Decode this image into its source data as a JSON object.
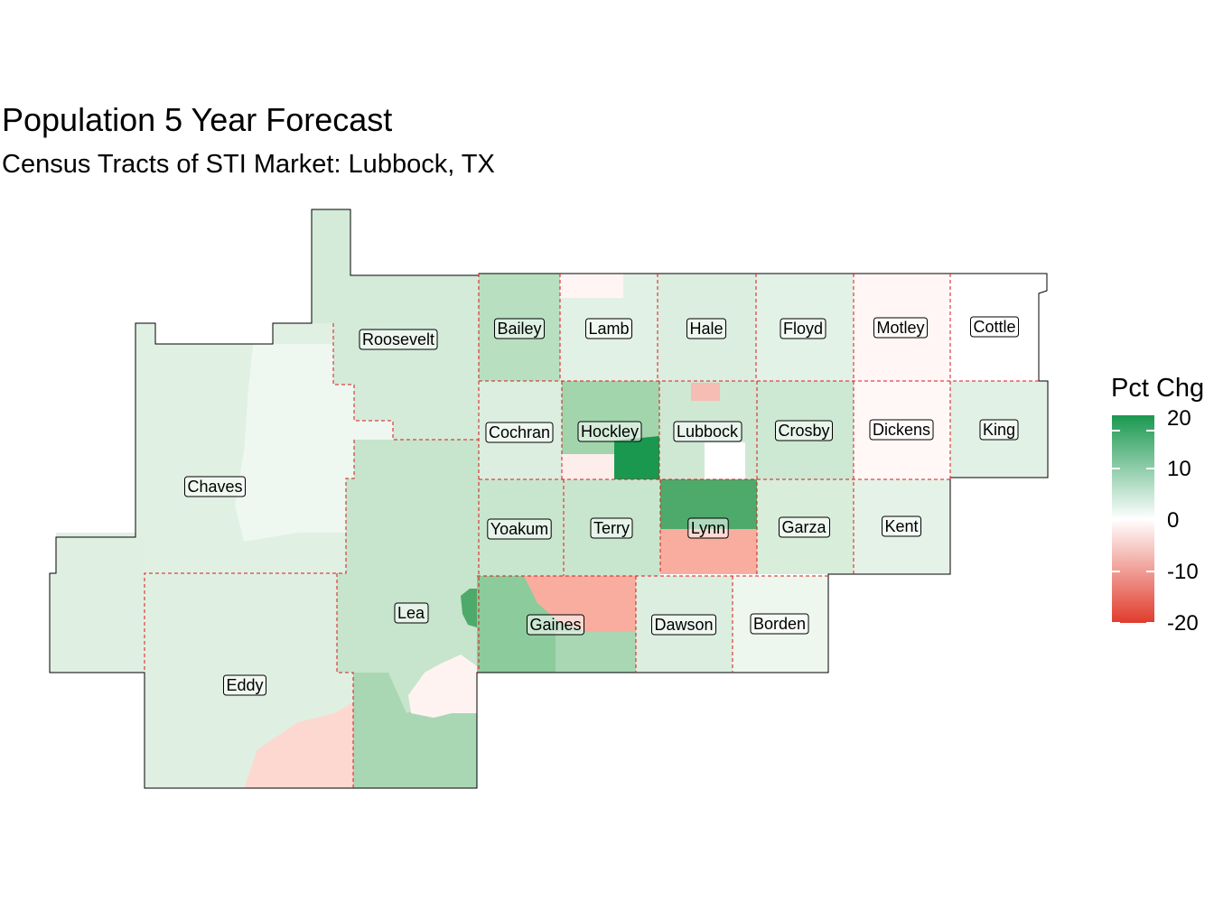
{
  "title": "Population 5 Year Forecast",
  "subtitle": "Census Tracts of STI Market: Lubbock, TX",
  "legend": {
    "title": "Pct Chg",
    "ticks": [
      "20",
      "10",
      "0",
      "-10",
      "-20"
    ],
    "high_color": "#1a9850",
    "mid_color": "#ffffff",
    "low_color": "#e03c2c"
  },
  "counties": [
    {
      "name": "Roosevelt",
      "fill": "#d5ebd9"
    },
    {
      "name": "Bailey",
      "fill": "#b9dfc1"
    },
    {
      "name": "Lamb",
      "fill": "#e2f1e5"
    },
    {
      "name": "Hale",
      "fill": "#dceedf"
    },
    {
      "name": "Floyd",
      "fill": "#e3f2e6"
    },
    {
      "name": "Motley",
      "fill": "#fff6f5"
    },
    {
      "name": "Cottle",
      "fill": "#ffffff"
    },
    {
      "name": "Chaves",
      "fill": "#e0f0e3"
    },
    {
      "name": "Cochran",
      "fill": "#dceedf"
    },
    {
      "name": "Hockley",
      "fill": "#a2d5ac"
    },
    {
      "name": "Lubbock",
      "fill": "#cfe8d4"
    },
    {
      "name": "Crosby",
      "fill": "#cde8d3"
    },
    {
      "name": "Dickens",
      "fill": "#fff8f7"
    },
    {
      "name": "King",
      "fill": "#e2f1e5"
    },
    {
      "name": "Yoakum",
      "fill": "#c8e6ce"
    },
    {
      "name": "Terry",
      "fill": "#c8e6ce"
    },
    {
      "name": "Lynn",
      "fill": "#4daa6a"
    },
    {
      "name": "Garza",
      "fill": "#d8edda"
    },
    {
      "name": "Kent",
      "fill": "#e5f2e7"
    },
    {
      "name": "Lea",
      "fill": "#c6e5cc"
    },
    {
      "name": "Gaines",
      "fill": "#8ccb9b"
    },
    {
      "name": "Dawson",
      "fill": "#dceedf"
    },
    {
      "name": "Borden",
      "fill": "#edf7ee"
    },
    {
      "name": "Eddy",
      "fill": "#dff0e2"
    }
  ],
  "tract_colors": {
    "lynn_south": "#f9ad9f",
    "gaines_north": "#f9ad9f",
    "eddy_southeast": "#fdd8d1",
    "lea_south": "#a9d7b3",
    "lea_pocket": "#fff3f1",
    "hockley_southeast": "#1a9850",
    "hockley_southwest": "#fdeeec",
    "lubbock_center": "#ffffff",
    "lubbock_north": "#f6bdb4",
    "lamb_north": "#fff5f4",
    "chaves_east": "#eef7f0",
    "lea_east_tract": "#4daa6a"
  }
}
